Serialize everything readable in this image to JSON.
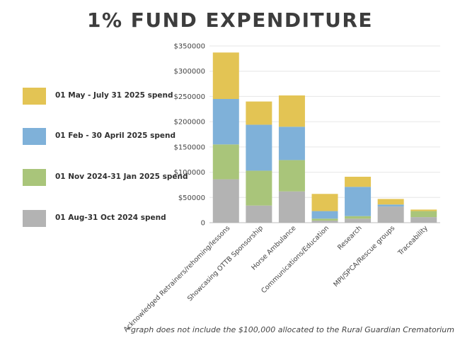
{
  "title": "1% FUND EXPENDITURE",
  "footnote": "*graph does not include the $100,000 allocated to the Rural Guardian Crematorium",
  "chart_data": {
    "type": "bar",
    "stacked": true,
    "title": "1% FUND EXPENDITURE",
    "xlabel": "",
    "ylabel": "",
    "ylim": [
      0,
      350000
    ],
    "yticks": [
      0,
      50000,
      100000,
      150000,
      200000,
      250000,
      300000,
      350000
    ],
    "ytick_labels": [
      "0",
      "$50000",
      "$100000",
      "$150000",
      "$200000",
      "$250000",
      "$300000",
      "$350000"
    ],
    "grid": true,
    "legend_position": "left",
    "categories": [
      "Acknowledged Retrainers/rehoming/lessons",
      "Showcasing OTTB Sponsorship",
      "Horse Ambulance",
      "Communications/Education",
      "Research",
      "MPI/SPCA/Rescue groups",
      "Traceability"
    ],
    "series": [
      {
        "name": "01 Aug-31 Oct 2024 spend",
        "color": "#b3b3b3",
        "values": [
          86000,
          34000,
          62000,
          4000,
          8000,
          32000,
          11000
        ]
      },
      {
        "name": "01 Nov 2024-31 Jan 2025 spend",
        "color": "#a9c57a",
        "values": [
          69000,
          69000,
          62000,
          4000,
          5000,
          0,
          12000
        ]
      },
      {
        "name": "01 Feb - 30 April 2025 spend",
        "color": "#7fb1d9",
        "values": [
          90000,
          91000,
          66000,
          15000,
          58000,
          4000,
          0
        ]
      },
      {
        "name": "01 May - July 31 2025 spend",
        "color": "#e3c454",
        "values": [
          92000,
          46000,
          62000,
          34000,
          20000,
          11000,
          3000
        ]
      }
    ]
  }
}
